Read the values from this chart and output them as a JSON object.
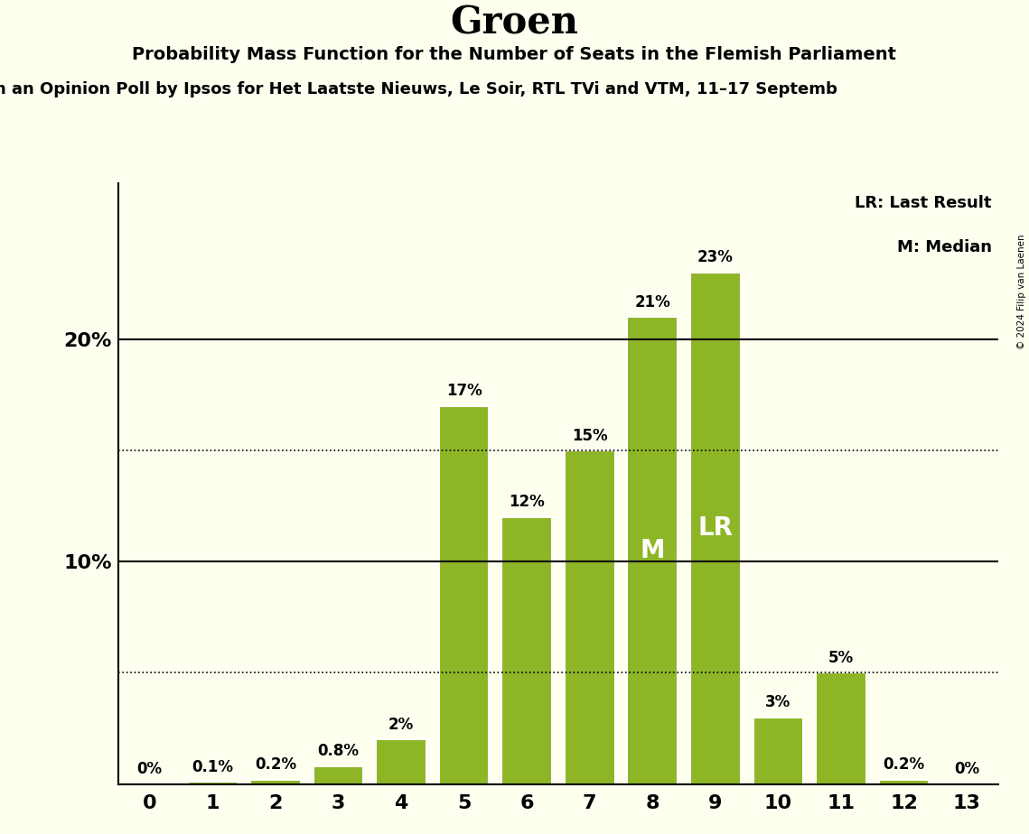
{
  "title": "Groen",
  "subtitle1": "Probability Mass Function for the Number of Seats in the Flemish Parliament",
  "subtitle2": "n an Opinion Poll by Ipsos for Het Laatste Nieuws, Le Soir, RTL TVi and VTM, 11–17 Septemb",
  "copyright": "© 2024 Filip van Laenen",
  "categories": [
    0,
    1,
    2,
    3,
    4,
    5,
    6,
    7,
    8,
    9,
    10,
    11,
    12,
    13
  ],
  "values": [
    0.0,
    0.1,
    0.2,
    0.8,
    2.0,
    17.0,
    12.0,
    15.0,
    21.0,
    23.0,
    3.0,
    5.0,
    0.2,
    0.0
  ],
  "labels": [
    "0%",
    "0.1%",
    "0.2%",
    "0.8%",
    "2%",
    "17%",
    "12%",
    "15%",
    "21%",
    "23%",
    "3%",
    "5%",
    "0.2%",
    "0%"
  ],
  "bar_color": "#8db526",
  "background_color": "#fffff0",
  "median_seat": 8,
  "last_result_seat": 9,
  "dotted_lines": [
    5.0,
    15.0
  ],
  "solid_lines": [
    10.0,
    20.0
  ],
  "legend_lr": "LR: Last Result",
  "legend_m": "M: Median",
  "xlim": [
    -0.5,
    13.5
  ],
  "ylim": [
    0,
    27
  ],
  "title_fontsize": 30,
  "subtitle1_fontsize": 14,
  "subtitle2_fontsize": 13,
  "label_fontsize": 12,
  "tick_fontsize": 16,
  "ytick_values": [
    10,
    20
  ],
  "ytick_labels": [
    "10%",
    "20%"
  ],
  "bar_edge_color": "white",
  "bar_linewidth": 1.5,
  "spine_color": "black"
}
